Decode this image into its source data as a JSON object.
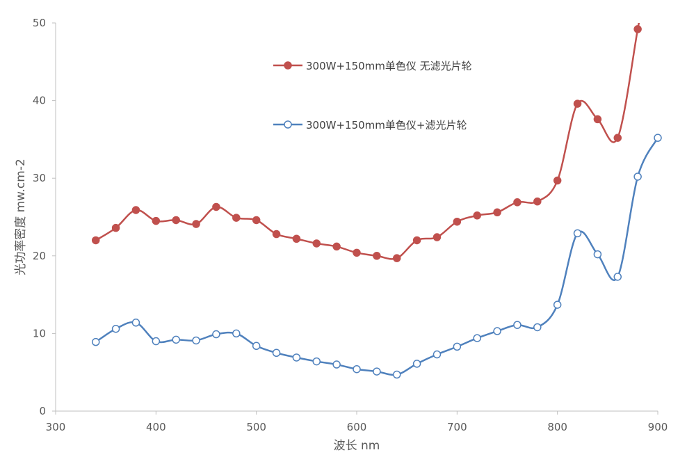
{
  "chart_data": {
    "type": "line",
    "title": "",
    "xlabel": "波长 nm",
    "ylabel": "光功率密度 mw.cm-2",
    "xlim": [
      300,
      900
    ],
    "ylim": [
      0,
      50
    ],
    "xticks": [
      300,
      400,
      500,
      600,
      700,
      800,
      900
    ],
    "yticks": [
      0,
      10,
      20,
      30,
      40,
      50
    ],
    "grid": false,
    "smooth": true,
    "legend_position": "top-right",
    "series": [
      {
        "name": "300W+150mm单色仪  无滤光片轮",
        "color": "#C0504D",
        "marker": "filled-circle",
        "x": [
          340,
          360,
          380,
          400,
          420,
          440,
          460,
          480,
          500,
          520,
          540,
          560,
          580,
          600,
          620,
          640,
          660,
          680,
          700,
          720,
          740,
          760,
          780,
          800,
          820,
          840,
          860,
          880
        ],
        "y": [
          22.0,
          23.6,
          25.9,
          24.5,
          24.6,
          24.1,
          26.3,
          24.9,
          24.6,
          22.8,
          22.2,
          21.6,
          21.2,
          20.4,
          20.0,
          19.7,
          22.0,
          22.4,
          24.4,
          25.2,
          25.6,
          26.9,
          27.0,
          29.7,
          39.6,
          37.6,
          35.2,
          49.2
        ]
      },
      {
        "name": "300W+150mm单色仪+滤光片轮",
        "color": "#4F81BD",
        "marker": "open-circle",
        "x": [
          340,
          360,
          380,
          400,
          420,
          440,
          460,
          480,
          500,
          520,
          540,
          560,
          580,
          600,
          620,
          640,
          660,
          680,
          700,
          720,
          740,
          760,
          780,
          800,
          820,
          840,
          860,
          880,
          900
        ],
        "y": [
          8.9,
          10.6,
          11.4,
          9.0,
          9.2,
          9.1,
          9.9,
          10.0,
          8.4,
          7.5,
          6.9,
          6.4,
          6.0,
          5.4,
          5.1,
          4.7,
          6.1,
          7.3,
          8.3,
          9.4,
          10.3,
          11.1,
          10.8,
          13.7,
          22.9,
          20.2,
          17.3,
          30.2,
          35.2
        ]
      }
    ]
  }
}
